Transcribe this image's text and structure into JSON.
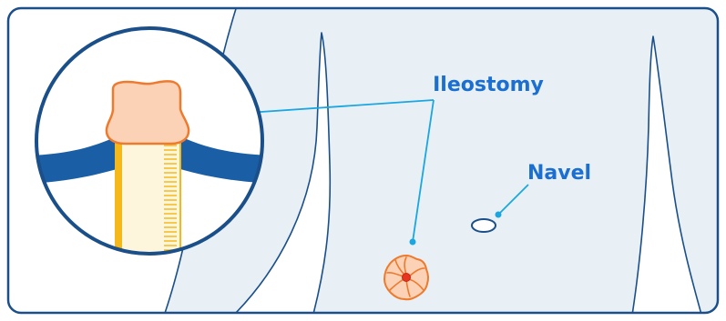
{
  "labels": {
    "ileostomy": "Ileostomy",
    "navel": "Navel"
  },
  "colors": {
    "frame_border": "#1a4f8a",
    "background": "#ffffff",
    "body_skin": "#e8f0f6",
    "body_outline": "#1a4f8a",
    "label_text": "#1a6fd1",
    "leader_line": "#1aa6e0",
    "stoma_fill": "#fbd2b5",
    "stoma_outline": "#ee7a2e",
    "stoma_center": "#e8351f",
    "abdominal_wall": "#1a5fa6",
    "tube_fill": "#fdf6dd",
    "tube_edge": "#f4b81b",
    "navel_fill": "#ffffff"
  }
}
